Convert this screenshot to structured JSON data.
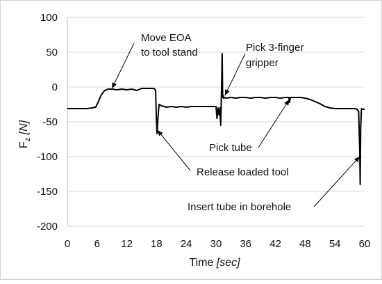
{
  "chart_data": {
    "type": "line",
    "title": "",
    "xlabel": {
      "main": "Time ",
      "unit": "[sec]"
    },
    "ylabel": {
      "main": "F",
      "sub": "z",
      "unit": " [N]"
    },
    "xlim": [
      0,
      60
    ],
    "ylim": [
      -200,
      100
    ],
    "xticks": [
      0,
      6,
      12,
      18,
      24,
      30,
      36,
      42,
      48,
      54,
      60
    ],
    "yticks": [
      100,
      50,
      0,
      -50,
      -100,
      -150,
      -200
    ],
    "grid": true,
    "line_color": "#000000",
    "series": [
      {
        "x": [
          0,
          1,
          2,
          3,
          4,
          5,
          5.7,
          6.2,
          6.8,
          7.5,
          8.2,
          9,
          10,
          11,
          12,
          13,
          14,
          15,
          16,
          17,
          17.5,
          17.8,
          17.95,
          18.1,
          18.25,
          18.5,
          19,
          20,
          21,
          22,
          23,
          24,
          25,
          26,
          27,
          28,
          29,
          30,
          30.2,
          30.4,
          30.6,
          30.8,
          30.95,
          31.1,
          31.25,
          31.35,
          31.45,
          31.55,
          31.7,
          32,
          33,
          34,
          35,
          36,
          37,
          38,
          39,
          40,
          41,
          42,
          43,
          44,
          44.7,
          44.85,
          45,
          46,
          47,
          48,
          49,
          50,
          51,
          52,
          53,
          54,
          55,
          56,
          57,
          58,
          58.5,
          58.8,
          59.0,
          59.1,
          59.2,
          59.35,
          59.5,
          60
        ],
        "y": [
          -31,
          -31,
          -31,
          -31,
          -31,
          -30,
          -29,
          -22,
          -12,
          -5,
          -3,
          -3,
          -4,
          -3,
          -4,
          -3,
          -5,
          -2,
          -2,
          -2,
          -2,
          -5,
          -40,
          -67,
          -48,
          -25,
          -27,
          -29,
          -28,
          -29,
          -28,
          -29,
          -28,
          -28,
          -28,
          -28,
          -28,
          -28,
          -45,
          -30,
          -40,
          -30,
          -55,
          -10,
          48,
          -15,
          -12,
          -16,
          -15,
          -16,
          -15,
          -16,
          -15,
          -15,
          -16,
          -15,
          -15,
          -16,
          -15,
          -15,
          -16,
          -15,
          -15,
          -22,
          -15,
          -15,
          -15,
          -16,
          -18,
          -21,
          -24,
          -28,
          -30,
          -31,
          -31,
          -31,
          -31,
          -31,
          -32,
          -35,
          -90,
          -140,
          -60,
          -31,
          -32,
          -32
        ]
      }
    ],
    "annotations": [
      {
        "lines": [
          "Move EOA",
          "to tool stand"
        ],
        "target": [
          9,
          -2
        ]
      },
      {
        "lines": [
          "Pick 3-finger",
          "gripper"
        ],
        "target": [
          31.8,
          -12
        ]
      },
      {
        "lines": [
          "Pick tube"
        ],
        "target": [
          44.8,
          -18
        ]
      },
      {
        "lines": [
          "Release loaded tool"
        ],
        "target": [
          18.2,
          -62
        ]
      },
      {
        "lines": [
          "Insert tube in borehole"
        ],
        "target": [
          59.0,
          -100
        ]
      }
    ]
  }
}
